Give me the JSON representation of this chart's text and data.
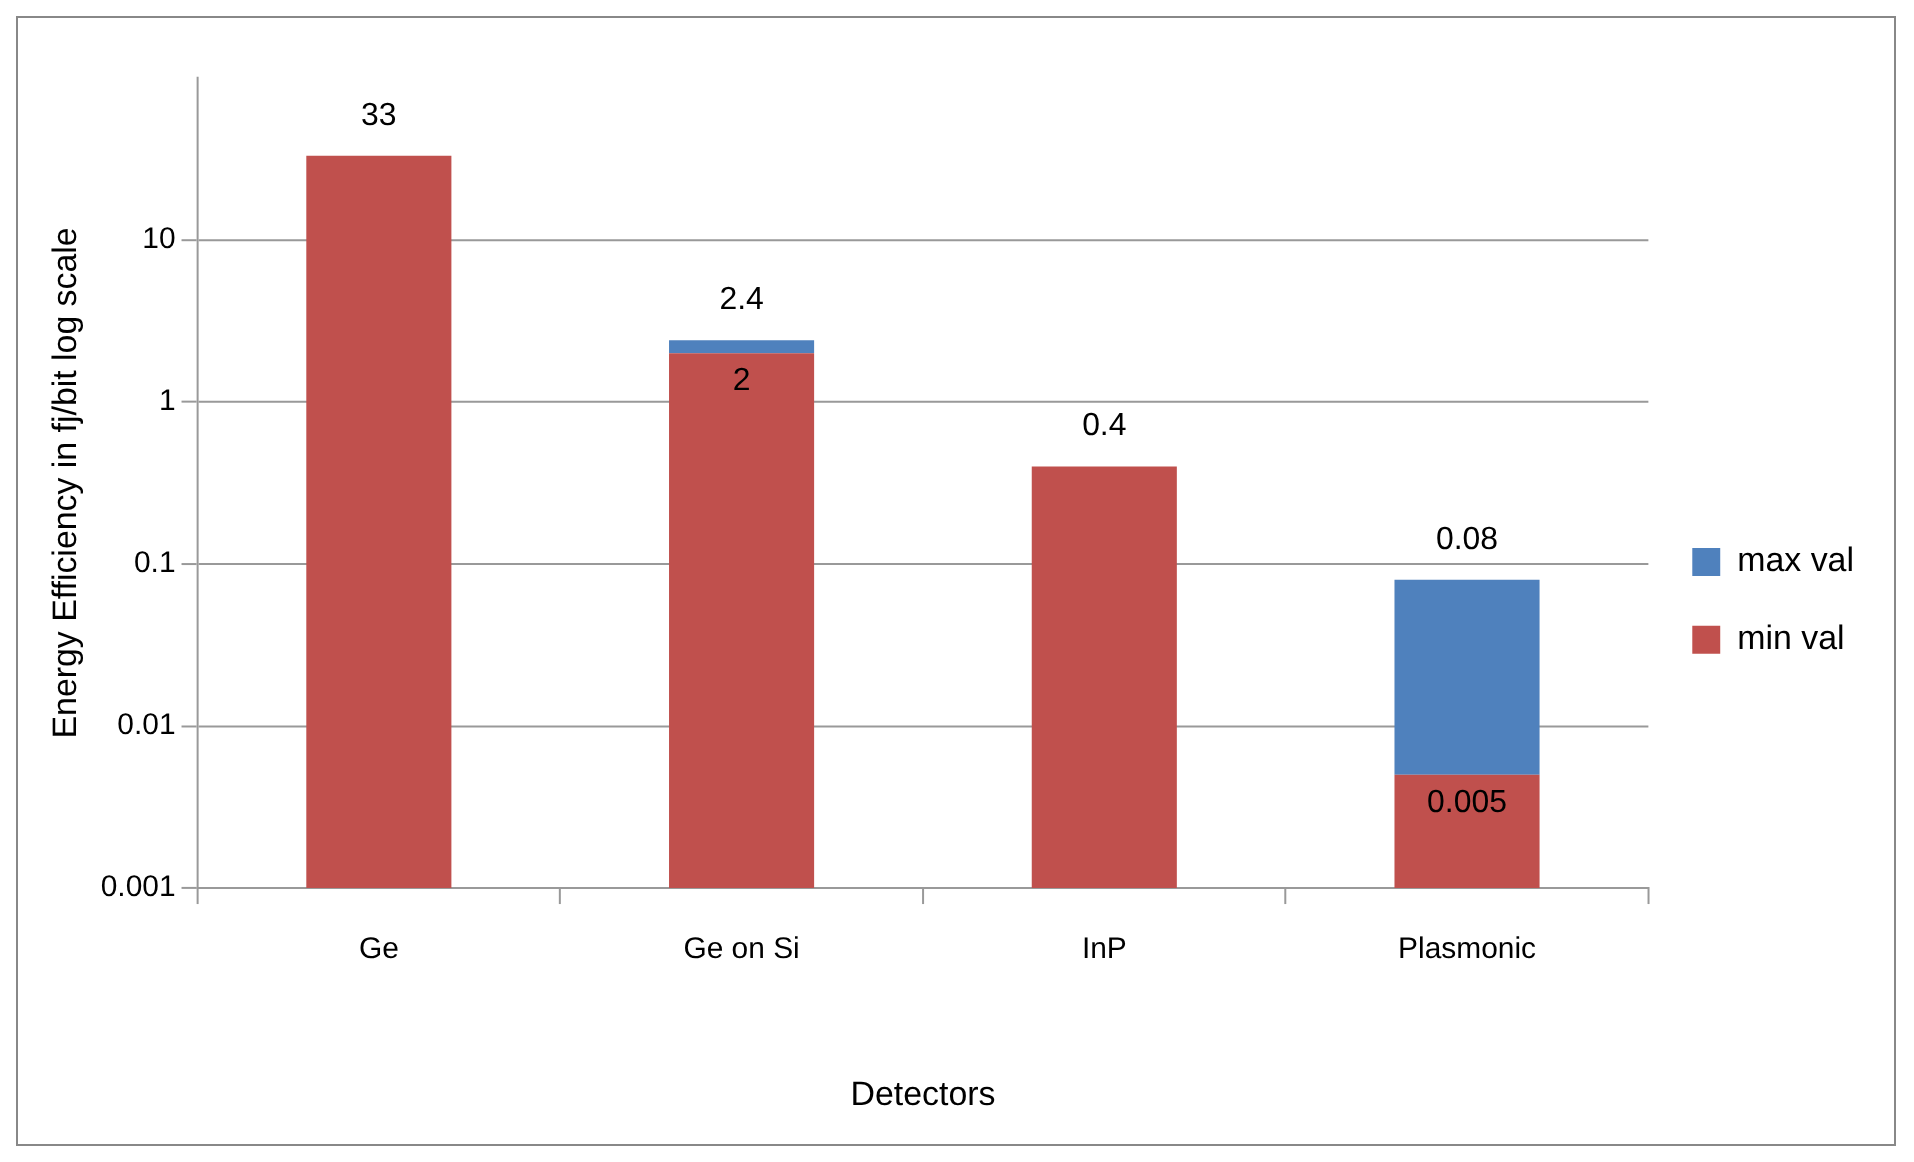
{
  "chart_data": {
    "type": "bar",
    "stacked": true,
    "log": "y",
    "xlabel": "Detectors",
    "ylabel": "Energy Efficiency in fj/bit log scale",
    "categories": [
      "Ge",
      "Ge on Si",
      "InP",
      "Plasmonic"
    ],
    "series": [
      {
        "name": "min val",
        "color": "#c0504d",
        "values": [
          33,
          2,
          0.4,
          0.005
        ],
        "value_labels": [
          "33",
          "2",
          "0.4",
          "0.005"
        ]
      },
      {
        "name": "max val",
        "color": "#4f81bd",
        "values": [
          null,
          0.4,
          null,
          0.075
        ]
      }
    ],
    "annotations": [
      {
        "text": "2.4",
        "x": "Ge on Si",
        "y": 2.4
      },
      {
        "text": "0.08",
        "x": "Plasmonic",
        "y": 0.08
      }
    ],
    "ylim": [
      0.001,
      100
    ],
    "yticks": [
      0.001,
      0.01,
      0.1,
      1,
      10
    ],
    "grid": "y",
    "legend": "right"
  }
}
